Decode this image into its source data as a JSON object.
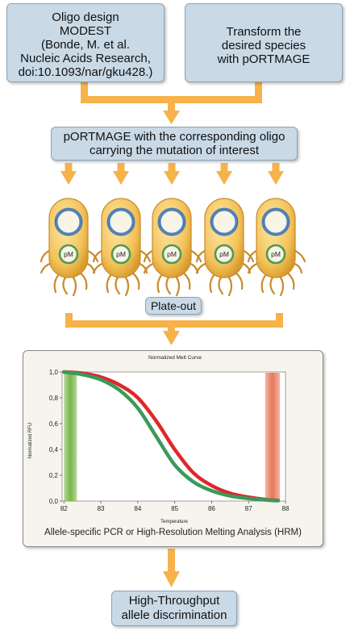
{
  "oligo_box": {
    "lines": [
      "Oligo design",
      "MODEST",
      "(Bonde,  M. et al.",
      "Nucleic Acids Research,",
      "doi:10.1093/nar/gku428.)"
    ]
  },
  "transform_box": {
    "lines": [
      "Transform the",
      "desired species",
      "with pORTMAGE"
    ]
  },
  "portmage_box": {
    "lines": [
      "pORTMAGE with the corresponding oligo",
      "carrying the mutation of interest"
    ]
  },
  "cells": {
    "count": 5,
    "plasmid_label": "pM"
  },
  "plateout_box": {
    "label": "Plate-out"
  },
  "melt_panel": {
    "caption": "Allele-specific PCR or High-Resolution Melting Analysis (HRM)"
  },
  "final_box": {
    "lines": [
      "High-Throughput",
      "allele discrimination"
    ]
  },
  "colors": {
    "box_fill": "#c9d9e6",
    "arrow": "#f7b24a",
    "curve_red": "#e0262a",
    "curve_green": "#3a9a5a"
  },
  "chart_data": {
    "type": "line",
    "title": "Normalized Melt Curve",
    "xlabel": "Temperature",
    "ylabel": "Normalized RFU",
    "xlim": [
      81.95,
      88.0
    ],
    "ylim": [
      0.0,
      1.0
    ],
    "x_ticks": [
      "82",
      "83",
      "84",
      "85",
      "86",
      "87",
      "88"
    ],
    "y_ticks": [
      "0,0",
      "0,2",
      "0,4",
      "0,6",
      "0,8",
      "1,0"
    ],
    "grid": false,
    "series": [
      {
        "color": "#e0262a",
        "x": [
          82.0,
          82.5,
          83.0,
          83.5,
          84.0,
          84.5,
          85.0,
          85.5,
          86.0,
          86.5,
          87.0,
          87.5,
          87.8
        ],
        "y": [
          1.0,
          0.99,
          0.96,
          0.9,
          0.8,
          0.62,
          0.4,
          0.22,
          0.12,
          0.06,
          0.03,
          0.01,
          0.005
        ]
      },
      {
        "color": "#3a9a5a",
        "x": [
          82.0,
          82.5,
          83.0,
          83.5,
          84.0,
          84.5,
          85.0,
          85.5,
          86.0,
          86.5,
          87.0,
          87.5,
          87.8
        ],
        "y": [
          1.0,
          0.98,
          0.94,
          0.86,
          0.72,
          0.5,
          0.28,
          0.15,
          0.08,
          0.04,
          0.02,
          0.008,
          0.003
        ]
      }
    ],
    "highlight_bands": [
      {
        "color": "#7ab648",
        "x": [
          82.0,
          82.35
        ]
      },
      {
        "color": "#e8785a",
        "x": [
          87.45,
          87.85
        ]
      }
    ]
  }
}
